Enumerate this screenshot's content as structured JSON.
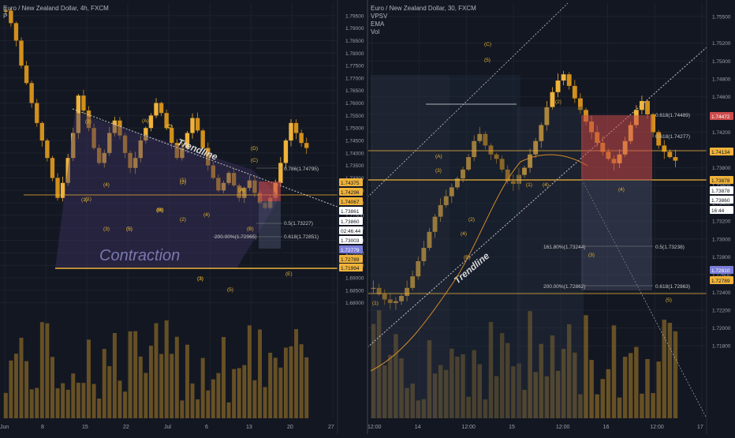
{
  "colors": {
    "background": "#131722",
    "up_candle": "#f0b33a",
    "down_candle": "#d18f1c",
    "wave_label": "#e8b530",
    "trendline": "#c8c8c8",
    "grid": "#1e222d",
    "axis_text": "#9aa0ac",
    "contraction_fill": "#3b3461",
    "target_zone": "#cc4b4b",
    "stop_zone": "#4a4f6b",
    "support_line": "#f0b33a"
  },
  "left_panel": {
    "header": {
      "symbol": "Euro / New Zealand Dollar, 4h, FXCM",
      "indicator": "P"
    },
    "chart_data": {
      "type": "line",
      "subtype": "candlestick-approx",
      "symbol": "EURNZD",
      "timeframe": "4h",
      "x_labels": [
        "Jun",
        "8",
        "15",
        "22",
        "Jul",
        "6",
        "13",
        "20",
        "27"
      ],
      "y_ticks": [
        1.795,
        1.79,
        1.785,
        1.78,
        1.775,
        1.77,
        1.765,
        1.76,
        1.755,
        1.75,
        1.745,
        1.74,
        1.735,
        1.73,
        1.725,
        1.72,
        1.715,
        1.71,
        1.705,
        1.7,
        1.695,
        1.69,
        1.685,
        1.68
      ],
      "y_tick_labels": [
        "1.79500",
        "1.79000",
        "1.78500",
        "1.78000",
        "1.77500",
        "1.77000",
        "1.76500",
        "1.76000",
        "1.75500",
        "1.75000",
        "1.74500",
        "1.74000",
        "1.73500",
        "1.73000",
        "1.72500",
        "1.72000",
        "1.71500",
        "1.71000",
        "1.70500",
        "1.70000",
        "1.69500",
        "1.69000",
        "1.68500",
        "1.68000"
      ],
      "ylim": [
        1.678,
        1.8
      ],
      "close_series": [
        1.797,
        1.792,
        1.785,
        1.775,
        1.768,
        1.76,
        1.752,
        1.745,
        1.738,
        1.73,
        1.722,
        1.728,
        1.738,
        1.748,
        1.763,
        1.757,
        1.75,
        1.742,
        1.736,
        1.74,
        1.748,
        1.753,
        1.747,
        1.74,
        1.734,
        1.738,
        1.745,
        1.75,
        1.755,
        1.76,
        1.756,
        1.75,
        1.744,
        1.738,
        1.742,
        1.748,
        1.754,
        1.749,
        1.742,
        1.735,
        1.73,
        1.725,
        1.728,
        1.732,
        1.727,
        1.722,
        1.726,
        1.729,
        1.724,
        1.72,
        1.718,
        1.722,
        1.728,
        1.736,
        1.745,
        1.752,
        1.748,
        1.744,
        1.742
      ],
      "annotations": {
        "trendline_label": "Trendline",
        "pattern_label": "Contraction",
        "fib_levels": [
          "0.786(1.74795)",
          "0.5(1.73227)",
          "0.618(1.72851)",
          "200.00%(1.72965)"
        ],
        "waves": [
          "(2)",
          "(1)",
          "(3)",
          "(4)",
          "(5)",
          "(A)",
          "(B)",
          "(C)",
          "(D)",
          "(E)",
          "(1)",
          "(2)",
          "(3)",
          "(4)",
          "(5)",
          "(A)",
          "(B)",
          "(C)",
          "(1)",
          "(2)",
          "(3)",
          "(5)",
          "(B)",
          "(A)",
          "(C)"
        ]
      }
    },
    "price_badges": [
      {
        "text": "1.74375",
        "bg": "#f0b33a",
        "fg": "#131722"
      },
      {
        "text": "1.74296",
        "bg": "#f0b33a",
        "fg": "#131722"
      },
      {
        "text": "1.74067",
        "bg": "#f0b33a",
        "fg": "#131722"
      },
      {
        "text": "1.73861",
        "bg": "#ffffff",
        "fg": "#131722"
      },
      {
        "text": "1.73860",
        "bg": "#ffffff",
        "fg": "#131722"
      },
      {
        "text": "02:46:44",
        "bg": "#ffffff",
        "fg": "#131722"
      },
      {
        "text": "1.73003",
        "bg": "#ffffff",
        "fg": "#131722"
      },
      {
        "text": "1.72779",
        "bg": "#7a7dd8",
        "fg": "#ffffff"
      },
      {
        "text": "1.72789",
        "bg": "#f0b33a",
        "fg": "#131722"
      },
      {
        "text": "1.71994",
        "bg": "#f0b33a",
        "fg": "#131722"
      }
    ]
  },
  "right_panel": {
    "header": {
      "symbol": "Euro / New Zealand Dollar, 30, FXCM",
      "indicators": [
        "VPSV",
        "EMA",
        "Vol"
      ]
    },
    "chart_data": {
      "type": "line",
      "subtype": "candlestick-approx",
      "symbol": "EURNZD",
      "timeframe": "30",
      "x_labels": [
        "12:00",
        "14",
        "12:00",
        "15",
        "12:00",
        "16",
        "12:00",
        "17"
      ],
      "y_ticks": [
        1.755,
        1.752,
        1.75,
        1.748,
        1.746,
        1.744,
        1.742,
        1.74,
        1.738,
        1.736,
        1.734,
        1.732,
        1.73,
        1.728,
        1.726,
        1.724,
        1.722,
        1.72,
        1.718
      ],
      "y_tick_labels": [
        "1.75500",
        "1.75200",
        "1.75000",
        "1.74800",
        "1.74600",
        "1.74400",
        "1.74200",
        "1.74000",
        "1.73800",
        "1.73600",
        "1.73400",
        "1.73200",
        "1.73000",
        "1.72800",
        "1.72600",
        "1.72400",
        "1.72200",
        "1.72000",
        "1.71800"
      ],
      "ylim": [
        1.7165,
        1.7565
      ],
      "close_series": [
        1.7245,
        1.7238,
        1.7232,
        1.7228,
        1.723,
        1.7236,
        1.7245,
        1.7258,
        1.7275,
        1.729,
        1.7308,
        1.7325,
        1.7338,
        1.7348,
        1.7358,
        1.7368,
        1.7378,
        1.7392,
        1.741,
        1.7418,
        1.7405,
        1.7395,
        1.739,
        1.7378,
        1.7365,
        1.7362,
        1.7372,
        1.738,
        1.7395,
        1.741,
        1.7428,
        1.7448,
        1.7465,
        1.7478,
        1.7485,
        1.7472,
        1.7458,
        1.7445,
        1.7432,
        1.742,
        1.7408,
        1.7398,
        1.739,
        1.7385,
        1.7395,
        1.741,
        1.7428,
        1.7445,
        1.7455,
        1.744,
        1.742,
        1.7405,
        1.7398,
        1.7392,
        1.7388
      ],
      "annotations": {
        "trendline_label": "Trendline",
        "fib_levels": [
          "0.618(1.74489)",
          "0.618(1.74277)",
          "161.80%(1.73244)",
          "0.5(1.73238)",
          "200.00%(1.72862)",
          "0.618(1.72863)"
        ],
        "waves": [
          "(C)",
          "(5)",
          "(2)",
          "(A)",
          "(3)",
          "(1)",
          "(4)",
          "(4)",
          "(B)",
          "(1)",
          "(2)",
          "(3)",
          "(4)",
          "(5)"
        ]
      }
    },
    "price_badges": [
      {
        "text": "1.74472",
        "bg": "#cc4b4b",
        "fg": "#ffffff"
      },
      {
        "text": "1.74134",
        "bg": "#f0b33a",
        "fg": "#131722"
      },
      {
        "text": "1.73878",
        "bg": "#f0b33a",
        "fg": "#131722"
      },
      {
        "text": "1.73878",
        "bg": "#ffffff",
        "fg": "#131722"
      },
      {
        "text": "1.73860",
        "bg": "#ffffff",
        "fg": "#131722"
      },
      {
        "text": "16:44",
        "bg": "#ffffff",
        "fg": "#131722"
      },
      {
        "text": "1.72810",
        "bg": "#7a7dd8",
        "fg": "#ffffff"
      },
      {
        "text": "1.72789",
        "bg": "#f0b33a",
        "fg": "#131722"
      }
    ]
  }
}
